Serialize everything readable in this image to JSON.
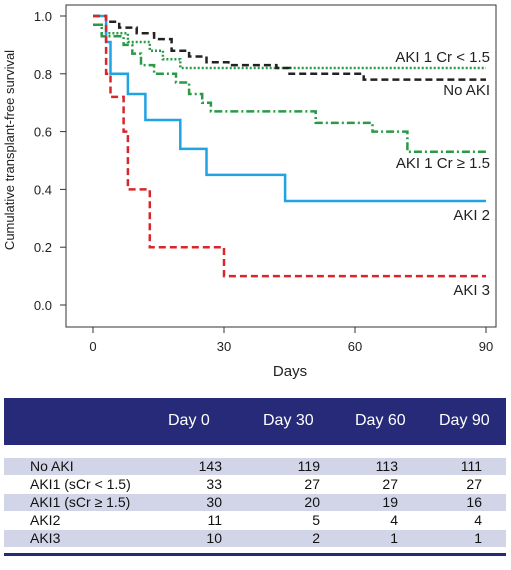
{
  "chart_data": {
    "type": "line",
    "subtype": "kaplan-meier step",
    "ylabel": "Cumulative transplant-free survival",
    "xlabel": "Days",
    "xlim": [
      0,
      90
    ],
    "ylim": [
      0.0,
      1.0
    ],
    "xticks": [
      "0",
      "30",
      "60",
      "90"
    ],
    "yticks": [
      "0.0",
      "0.2",
      "0.4",
      "0.6",
      "0.8",
      "1.0"
    ],
    "grid": false,
    "series": [
      {
        "name": "No AKI",
        "color": "#222222",
        "dash": "dashed",
        "points": [
          [
            0,
            1.0
          ],
          [
            3,
            1.0
          ],
          [
            3,
            0.98
          ],
          [
            6,
            0.98
          ],
          [
            6,
            0.96
          ],
          [
            10,
            0.96
          ],
          [
            10,
            0.94
          ],
          [
            14,
            0.94
          ],
          [
            14,
            0.92
          ],
          [
            18,
            0.92
          ],
          [
            18,
            0.88
          ],
          [
            22,
            0.88
          ],
          [
            22,
            0.86
          ],
          [
            26,
            0.86
          ],
          [
            26,
            0.84
          ],
          [
            31,
            0.84
          ],
          [
            31,
            0.83
          ],
          [
            42,
            0.83
          ],
          [
            42,
            0.82
          ],
          [
            45,
            0.82
          ],
          [
            45,
            0.8
          ],
          [
            62,
            0.8
          ],
          [
            62,
            0.78
          ],
          [
            90,
            0.78
          ]
        ]
      },
      {
        "name": "AKI 1 Cr < 1.5",
        "color": "#2a9a48",
        "dash": "dotted",
        "points": [
          [
            0,
            0.97
          ],
          [
            3,
            0.97
          ],
          [
            3,
            0.94
          ],
          [
            8,
            0.94
          ],
          [
            8,
            0.91
          ],
          [
            13,
            0.91
          ],
          [
            13,
            0.88
          ],
          [
            16,
            0.88
          ],
          [
            16,
            0.85
          ],
          [
            20,
            0.85
          ],
          [
            20,
            0.82
          ],
          [
            90,
            0.82
          ]
        ]
      },
      {
        "name": "AKI 1 Cr ≥ 1.5",
        "color": "#2a9a48",
        "dash": "dash-dot",
        "points": [
          [
            0,
            0.97
          ],
          [
            2,
            0.97
          ],
          [
            2,
            0.93
          ],
          [
            7,
            0.93
          ],
          [
            7,
            0.9
          ],
          [
            9,
            0.9
          ],
          [
            9,
            0.87
          ],
          [
            11,
            0.87
          ],
          [
            11,
            0.83
          ],
          [
            14,
            0.83
          ],
          [
            14,
            0.8
          ],
          [
            19,
            0.8
          ],
          [
            19,
            0.77
          ],
          [
            22,
            0.77
          ],
          [
            22,
            0.73
          ],
          [
            25,
            0.73
          ],
          [
            25,
            0.7
          ],
          [
            27,
            0.7
          ],
          [
            27,
            0.67
          ],
          [
            51,
            0.67
          ],
          [
            51,
            0.63
          ],
          [
            64,
            0.63
          ],
          [
            64,
            0.6
          ],
          [
            72,
            0.6
          ],
          [
            72,
            0.53
          ],
          [
            90,
            0.53
          ]
        ]
      },
      {
        "name": "AKI 2",
        "color": "#1fa3e3",
        "dash": "solid",
        "points": [
          [
            0,
            1.0
          ],
          [
            3,
            1.0
          ],
          [
            3,
            0.91
          ],
          [
            4,
            0.91
          ],
          [
            4,
            0.8
          ],
          [
            8,
            0.8
          ],
          [
            8,
            0.73
          ],
          [
            12,
            0.73
          ],
          [
            12,
            0.64
          ],
          [
            20,
            0.64
          ],
          [
            20,
            0.54
          ],
          [
            26,
            0.54
          ],
          [
            26,
            0.45
          ],
          [
            44,
            0.45
          ],
          [
            44,
            0.36
          ],
          [
            90,
            0.36
          ]
        ]
      },
      {
        "name": "AKI 3",
        "color": "#d9262b",
        "dash": "dashed",
        "points": [
          [
            0,
            1.0
          ],
          [
            3,
            1.0
          ],
          [
            3,
            0.8
          ],
          [
            4,
            0.8
          ],
          [
            4,
            0.72
          ],
          [
            7,
            0.72
          ],
          [
            7,
            0.6
          ],
          [
            8,
            0.6
          ],
          [
            8,
            0.4
          ],
          [
            13,
            0.4
          ],
          [
            13,
            0.2
          ],
          [
            30,
            0.2
          ],
          [
            30,
            0.1
          ],
          [
            90,
            0.1
          ]
        ]
      }
    ],
    "annotations": [
      "AKI 1 Cr < 1.5",
      "No AKI",
      "AKI 1 Cr ≥ 1.5",
      "AKI 2",
      "AKI 3"
    ]
  },
  "table": {
    "header": [
      "",
      "Day 0",
      "Day 30",
      "Day 60",
      "Day 90"
    ],
    "rows": [
      {
        "label": "No AKI",
        "values": [
          "143",
          "119",
          "113",
          "111"
        ]
      },
      {
        "label": "AKI1 (sCr < 1.5)",
        "values": [
          "33",
          "27",
          "27",
          "27"
        ]
      },
      {
        "label": "AKI1 (sCr ≥ 1.5)",
        "values": [
          "30",
          "20",
          "19",
          "16"
        ]
      },
      {
        "label": "AKI2",
        "values": [
          "11",
          "5",
          "4",
          "4"
        ]
      },
      {
        "label": "AKI3",
        "values": [
          "10",
          "2",
          "1",
          "1"
        ]
      }
    ]
  }
}
